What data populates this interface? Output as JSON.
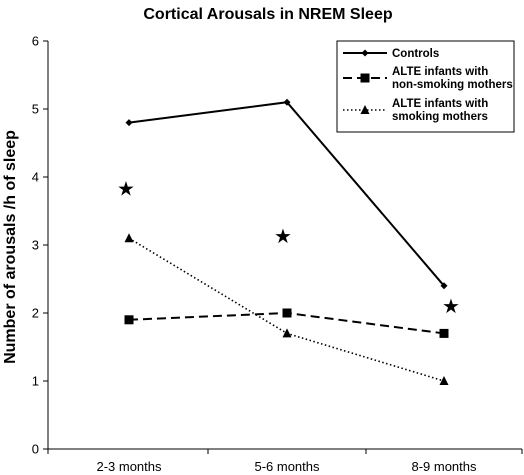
{
  "chart_data": {
    "type": "line",
    "title": "Cortical Arousals in NREM Sleep",
    "xlabel": "",
    "ylabel": "Number of arousals /h of sleep",
    "categories": [
      "2-3 months",
      "5-6 months",
      "8-9 months"
    ],
    "ylim": [
      0,
      6
    ],
    "yticks": [
      0,
      1,
      2,
      3,
      4,
      5,
      6
    ],
    "grid": false,
    "legend_position": "top-right",
    "series": [
      {
        "name": "Controls",
        "values": [
          4.8,
          5.1,
          2.4
        ],
        "line_style": "solid",
        "marker": "diamond",
        "color": "#000000"
      },
      {
        "name": "ALTE infants with non-smoking mothers",
        "legend_lines": [
          "ALTE infants with",
          "non-smoking mothers"
        ],
        "values": [
          1.9,
          2.0,
          1.7
        ],
        "line_style": "dashed",
        "marker": "square",
        "color": "#000000"
      },
      {
        "name": "ALTE infants with smoking mothers",
        "legend_lines": [
          "ALTE infants with",
          "smoking mothers"
        ],
        "values": [
          3.1,
          1.7,
          1.0
        ],
        "line_style": "dotted",
        "marker": "triangle",
        "color": "#000000"
      }
    ],
    "annotations": [
      {
        "symbol": "★",
        "category_index": 0,
        "y": 3.83
      },
      {
        "symbol": "★",
        "category_index": 1,
        "y": 3.13
      },
      {
        "symbol": "★",
        "category_index": 2,
        "y": 2.1
      }
    ]
  }
}
